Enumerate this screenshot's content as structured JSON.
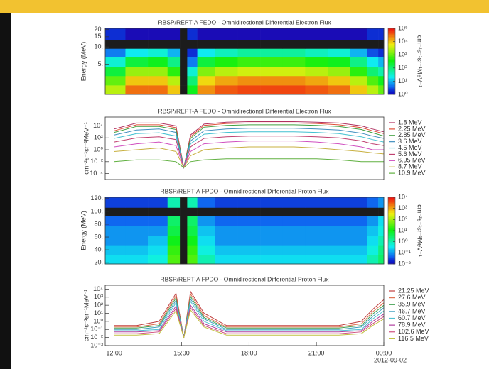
{
  "chart_data": [
    {
      "type": "heatmap",
      "title": "RBSP/REPT-A  FEDO - Omnidirectional Differential Electron Flux",
      "ylabel": "Energy (MeV)",
      "x": [
        12,
        13,
        14,
        14.75,
        15.1,
        15.4,
        16,
        17,
        18,
        19,
        20,
        21,
        22,
        23,
        23.5,
        24
      ],
      "xlim": [
        11.6,
        24
      ],
      "y": [
        1.8,
        2.6,
        3.8,
        5.5,
        8,
        11,
        16
      ],
      "log_y": true,
      "ylim": [
        1.5,
        21
      ],
      "yticks": [
        {
          "value": 5,
          "label": "5."
        },
        {
          "value": 10,
          "label": "10."
        },
        {
          "value": 15,
          "label": "15."
        },
        {
          "value": 20,
          "label": "20."
        }
      ],
      "values": [
        [
          3000,
          30000,
          30000,
          10000,
          null,
          300,
          20000,
          40000,
          50000,
          50000,
          50000,
          40000,
          30000,
          10000,
          3000,
          1000
        ],
        [
          1000,
          10000,
          10000,
          3000,
          null,
          100,
          8000,
          15000,
          20000,
          20000,
          20000,
          15000,
          10000,
          3000,
          800,
          300
        ],
        [
          200,
          2000,
          2000,
          500,
          null,
          30,
          1500,
          3000,
          4000,
          4000,
          4000,
          3000,
          2000,
          500,
          100,
          50
        ],
        [
          30,
          200,
          300,
          80,
          null,
          5,
          200,
          400,
          600,
          600,
          600,
          400,
          300,
          80,
          20,
          10
        ],
        [
          5,
          20,
          30,
          10,
          null,
          2,
          20,
          40,
          60,
          60,
          60,
          40,
          30,
          10,
          3,
          2
        ],
        [
          null,
          null,
          null,
          null,
          null,
          null,
          null,
          null,
          null,
          null,
          null,
          null,
          null,
          null,
          null,
          null
        ],
        [
          2,
          1,
          1,
          1,
          null,
          2,
          1,
          1,
          1,
          1,
          1,
          1,
          1,
          1,
          2,
          2
        ]
      ],
      "clim": [
        1,
        100000
      ],
      "cticks": [
        {
          "value": 1,
          "label": "10⁰"
        },
        {
          "value": 10,
          "label": "10¹"
        },
        {
          "value": 100,
          "label": "10²"
        },
        {
          "value": 1000,
          "label": "10³"
        },
        {
          "value": 10000,
          "label": "10⁴"
        },
        {
          "value": 100000,
          "label": "10⁵"
        }
      ],
      "colorbar_label": "cm⁻²s⁻¹sr⁻¹MeV⁻¹",
      "null_color": "#1c1c1c"
    },
    {
      "type": "line",
      "title": "RBSP/REPT-A  FEDO - Omnidirectional Differential Electron Flux",
      "ylabel": "cm⁻²s⁻¹sr⁻¹MeV⁻¹",
      "x": [
        12,
        13,
        14,
        14.75,
        15.1,
        15.4,
        16,
        17,
        18,
        19,
        20,
        21,
        22,
        23,
        23.5,
        24
      ],
      "xlim": [
        11.6,
        24
      ],
      "log_y": true,
      "ylim": [
        1e-05,
        300000
      ],
      "yticks": [
        {
          "value": 0.0001,
          "label": "10⁻⁴"
        },
        {
          "value": 0.01,
          "label": "10⁻²"
        },
        {
          "value": 1,
          "label": "10⁰"
        },
        {
          "value": 100,
          "label": "10²"
        },
        {
          "value": 10000,
          "label": "10⁴"
        }
      ],
      "series": [
        {
          "name": "1.8 MeV",
          "color": "#b03060",
          "values": [
            3000,
            30000,
            30000,
            10000,
            0.001,
            300,
            20000,
            40000,
            50000,
            50000,
            50000,
            40000,
            30000,
            10000,
            3000,
            1000
          ]
        },
        {
          "name": "2.25 MeV",
          "color": "#e0503a",
          "values": [
            1500,
            15000,
            15000,
            5000,
            0.001,
            150,
            12000,
            25000,
            30000,
            30000,
            30000,
            25000,
            15000,
            5000,
            1500,
            500
          ]
        },
        {
          "name": "2.85 MeV",
          "color": "#40a040",
          "values": [
            800,
            8000,
            8000,
            2500,
            0.001,
            80,
            6000,
            12000,
            15000,
            15000,
            15000,
            12000,
            8000,
            2500,
            700,
            200
          ]
        },
        {
          "name": "3.6 MeV",
          "color": "#3f8fbf",
          "values": [
            300,
            2000,
            3000,
            800,
            0.001,
            30,
            1500,
            3000,
            4000,
            4000,
            4000,
            3000,
            2000,
            600,
            200,
            80
          ]
        },
        {
          "name": "4.5 MeV",
          "color": "#40c0d0",
          "values": [
            80,
            500,
            700,
            200,
            0.001,
            10,
            400,
            800,
            1000,
            1000,
            1000,
            800,
            500,
            150,
            50,
            20
          ]
        },
        {
          "name": "5.6 MeV",
          "color": "#c04070",
          "values": [
            20,
            100,
            150,
            50,
            0.001,
            3,
            80,
            150,
            200,
            200,
            200,
            150,
            100,
            30,
            10,
            5
          ]
        },
        {
          "name": "6.95 MeV",
          "color": "#d050c0",
          "values": [
            3,
            10,
            20,
            5,
            0.001,
            0.5,
            10,
            20,
            30,
            30,
            30,
            20,
            10,
            3,
            1,
            1
          ]
        },
        {
          "name": "8.7 MeV",
          "color": "#c8b040",
          "values": [
            0.5,
            1,
            2,
            0.5,
            0.001,
            0.1,
            1,
            2,
            3,
            3,
            3,
            2,
            1,
            0.5,
            0.3,
            0.2
          ]
        },
        {
          "name": "10.9 MeV",
          "color": "#60b040",
          "values": [
            0.01,
            0.02,
            0.02,
            0.01,
            0.001,
            0.01,
            0.02,
            0.03,
            0.03,
            0.03,
            0.03,
            0.03,
            0.02,
            0.01,
            0.01,
            0.01
          ]
        }
      ]
    },
    {
      "type": "heatmap",
      "title": "RBSP/REPT-A  FPDO - Omnidirectional Differential Proton Flux",
      "ylabel": "Energy (MeV)",
      "x": [
        12,
        13,
        14,
        14.75,
        15.1,
        15.4,
        16,
        17,
        18,
        19,
        20,
        21,
        22,
        23,
        23.5,
        24
      ],
      "xlim": [
        11.6,
        24
      ],
      "y": [
        25,
        40,
        55,
        70,
        85,
        100,
        112
      ],
      "log_y": false,
      "ylim": [
        18,
        122
      ],
      "yticks": [
        {
          "value": 20,
          "label": "20."
        },
        {
          "value": 40,
          "label": "40."
        },
        {
          "value": 60,
          "label": "60."
        },
        {
          "value": 80,
          "label": "80."
        },
        {
          "value": 100,
          "label": "100."
        },
        {
          "value": 120,
          "label": "120."
        }
      ],
      "values": [
        [
          0.3,
          0.3,
          0.5,
          30,
          null,
          30,
          1,
          0.3,
          0.3,
          0.3,
          0.3,
          0.3,
          0.3,
          0.3,
          1,
          3
        ],
        [
          0.2,
          0.2,
          0.3,
          20,
          null,
          20,
          0.5,
          0.2,
          0.2,
          0.2,
          0.2,
          0.2,
          0.2,
          0.2,
          0.5,
          2
        ],
        [
          0.1,
          0.1,
          0.2,
          10,
          null,
          10,
          0.3,
          0.1,
          0.1,
          0.1,
          0.1,
          0.1,
          0.1,
          0.1,
          0.3,
          1
        ],
        [
          0.1,
          0.1,
          0.1,
          5,
          null,
          5,
          0.2,
          0.1,
          0.1,
          0.1,
          0.1,
          0.1,
          0.1,
          0.1,
          0.2,
          0.5
        ],
        [
          0.05,
          0.05,
          0.05,
          3,
          null,
          3,
          0.1,
          0.05,
          0.05,
          0.05,
          0.05,
          0.05,
          0.05,
          0.05,
          0.1,
          0.3
        ],
        [
          null,
          null,
          null,
          null,
          null,
          null,
          null,
          null,
          null,
          null,
          null,
          null,
          null,
          null,
          null,
          null
        ],
        [
          0.03,
          0.03,
          0.03,
          1,
          null,
          1,
          0.05,
          0.03,
          0.03,
          0.03,
          0.03,
          0.03,
          0.03,
          0.03,
          0.05,
          0.1
        ]
      ],
      "clim": [
        0.01,
        10000
      ],
      "cticks": [
        {
          "value": 0.01,
          "label": "10⁻²"
        },
        {
          "value": 0.1,
          "label": "10⁻¹"
        },
        {
          "value": 1,
          "label": "10⁰"
        },
        {
          "value": 10,
          "label": "10¹"
        },
        {
          "value": 100,
          "label": "10²"
        },
        {
          "value": 1000,
          "label": "10³"
        },
        {
          "value": 10000,
          "label": "10⁴"
        }
      ],
      "colorbar_label": "cm⁻²s⁻¹sr⁻¹MeV⁻¹",
      "null_color": "#1c1c1c"
    },
    {
      "type": "line",
      "title": "RBSP/REPT-A  FPDO - Omnidirectional Differential Proton Flux",
      "ylabel": "cm⁻²s⁻¹sr⁻¹MeV⁻¹",
      "x": [
        12,
        13,
        14,
        14.75,
        15.1,
        15.4,
        16,
        17,
        18,
        19,
        20,
        21,
        22,
        23,
        23.5,
        24
      ],
      "xlim": [
        11.6,
        24
      ],
      "xticks": [
        {
          "value": 12,
          "label": "12:00"
        },
        {
          "value": 15,
          "label": "15:00"
        },
        {
          "value": 18,
          "label": "18:00"
        },
        {
          "value": 21,
          "label": "21:00"
        },
        {
          "value": 24,
          "label": "00:00"
        }
      ],
      "date_label": "2012-09-02",
      "log_y": true,
      "ylim": [
        0.001,
        30000
      ],
      "yticks": [
        {
          "value": 0.001,
          "label": "10⁻³"
        },
        {
          "value": 0.01,
          "label": "10⁻²"
        },
        {
          "value": 0.1,
          "label": "10⁻¹"
        },
        {
          "value": 1,
          "label": "10⁰"
        },
        {
          "value": 10,
          "label": "10¹"
        },
        {
          "value": 100,
          "label": "10²"
        },
        {
          "value": 1000,
          "label": "10³"
        },
        {
          "value": 10000,
          "label": "10⁴"
        }
      ],
      "series": [
        {
          "name": "21.25 MeV",
          "color": "#c04040",
          "values": [
            0.3,
            0.3,
            1,
            3000,
            0.01,
            5000,
            10,
            0.3,
            0.3,
            0.3,
            0.3,
            0.3,
            0.3,
            1,
            30,
            500
          ]
        },
        {
          "name": "27.6 MeV",
          "color": "#e07050",
          "values": [
            0.2,
            0.2,
            0.5,
            1500,
            0.01,
            2500,
            5,
            0.2,
            0.2,
            0.2,
            0.2,
            0.2,
            0.2,
            0.5,
            15,
            200
          ]
        },
        {
          "name": "35.9 MeV",
          "color": "#40a050",
          "values": [
            0.15,
            0.15,
            0.3,
            800,
            0.01,
            1200,
            3,
            0.15,
            0.15,
            0.15,
            0.15,
            0.15,
            0.15,
            0.3,
            8,
            100
          ]
        },
        {
          "name": "46.7 MeV",
          "color": "#40a0c0",
          "values": [
            0.1,
            0.1,
            0.2,
            400,
            0.01,
            600,
            2,
            0.1,
            0.1,
            0.1,
            0.1,
            0.1,
            0.1,
            0.2,
            4,
            50
          ]
        },
        {
          "name": "60.7 MeV",
          "color": "#50c0d0",
          "values": [
            0.07,
            0.07,
            0.1,
            200,
            0.01,
            300,
            1,
            0.07,
            0.07,
            0.07,
            0.07,
            0.07,
            0.07,
            0.1,
            2,
            20
          ]
        },
        {
          "name": "78.9 MeV",
          "color": "#b040a0",
          "values": [
            0.05,
            0.05,
            0.07,
            80,
            0.01,
            100,
            0.5,
            0.05,
            0.05,
            0.05,
            0.05,
            0.05,
            0.05,
            0.07,
            1,
            8
          ]
        },
        {
          "name": "102.6 MeV",
          "color": "#d05080",
          "values": [
            0.03,
            0.03,
            0.05,
            40,
            0.01,
            50,
            0.3,
            0.03,
            0.03,
            0.03,
            0.03,
            0.03,
            0.03,
            0.05,
            0.5,
            4
          ]
        },
        {
          "name": "116.5 MeV",
          "color": "#c0c040",
          "values": [
            0.02,
            0.02,
            0.03,
            20,
            0.01,
            25,
            0.2,
            0.02,
            0.02,
            0.02,
            0.02,
            0.02,
            0.02,
            0.03,
            0.3,
            2
          ]
        }
      ]
    }
  ]
}
